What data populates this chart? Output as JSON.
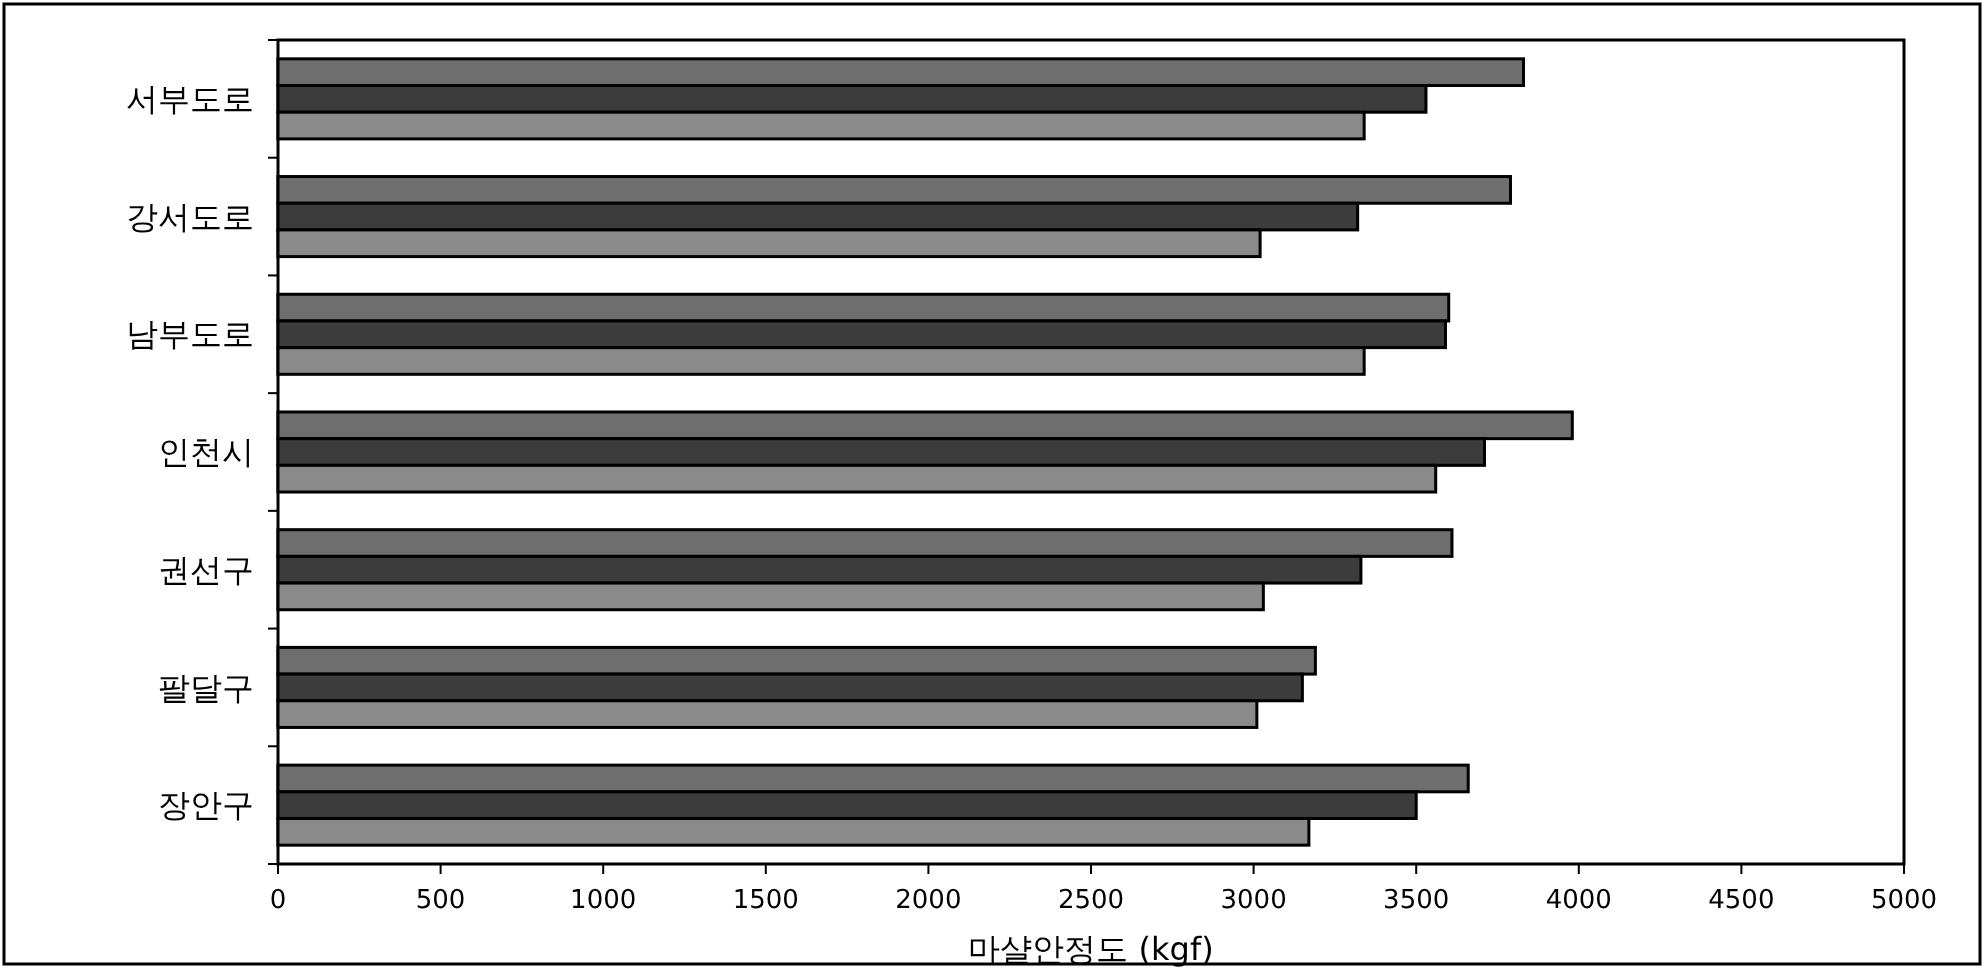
{
  "chart_data": {
    "type": "bar",
    "orientation": "horizontal",
    "xlabel": "마샬안정도 (kgf)",
    "categories": [
      "서부도로",
      "강서도로",
      "남부도로",
      "인천시",
      "권선구",
      "팔달구",
      "장안구"
    ],
    "series": [
      {
        "color": "#6e6e6e",
        "values": [
          3830,
          3790,
          3600,
          3980,
          3610,
          3190,
          3660
        ]
      },
      {
        "color": "#3c3c3c",
        "values": [
          3530,
          3320,
          3590,
          3710,
          3330,
          3150,
          3500
        ]
      },
      {
        "color": "#8a8a8a",
        "values": [
          3340,
          3020,
          3340,
          3560,
          3030,
          3010,
          3170
        ]
      }
    ],
    "xlim": [
      0,
      5000
    ],
    "xticks": [
      0,
      500,
      1000,
      1500,
      2000,
      2500,
      3000,
      3500,
      4000,
      4500,
      5000
    ],
    "grid": false
  }
}
